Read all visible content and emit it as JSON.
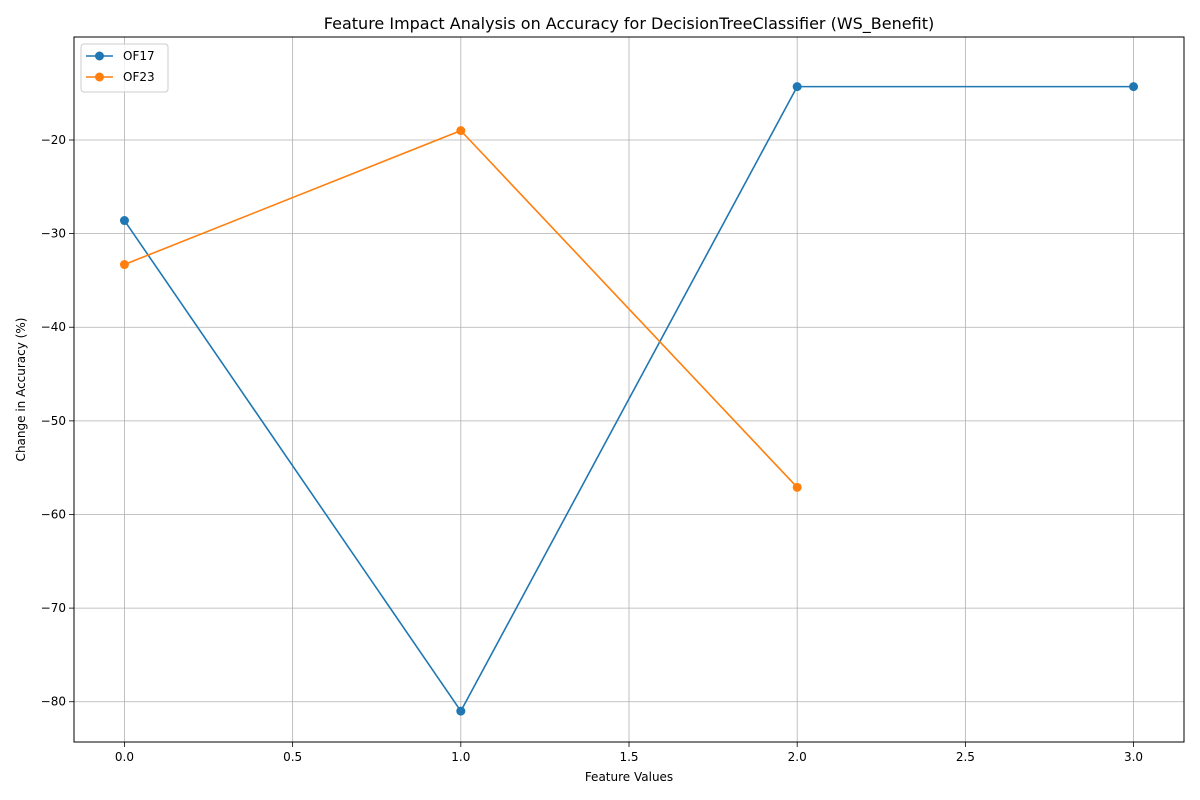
{
  "chart_data": {
    "type": "line",
    "title": "Feature Impact Analysis on Accuracy for DecisionTreeClassifier (WS_Benefit)",
    "xlabel": "Feature Values",
    "ylabel": "Change in Accuracy (%)",
    "xlim": [
      -0.15,
      3.15
    ],
    "ylim": [
      -84.3,
      -9.0
    ],
    "xticks": [
      0.0,
      0.5,
      1.0,
      1.5,
      2.0,
      2.5,
      3.0
    ],
    "xtick_labels": [
      "0.0",
      "0.5",
      "1.0",
      "1.5",
      "2.0",
      "2.5",
      "3.0"
    ],
    "yticks": [
      -80,
      -70,
      -60,
      -50,
      -40,
      -30,
      -20
    ],
    "ytick_labels": [
      "−80",
      "−70",
      "−60",
      "−50",
      "−40",
      "−30",
      "−20"
    ],
    "grid": true,
    "legend_position": "top-left",
    "series": [
      {
        "name": "OF17",
        "color": "#1f77b4",
        "marker": "circle",
        "x": [
          0,
          1,
          2,
          3
        ],
        "y": [
          -28.6,
          -81.0,
          -14.3,
          -14.3
        ]
      },
      {
        "name": "OF23",
        "color": "#ff7f0e",
        "marker": "circle",
        "x": [
          0,
          1,
          2
        ],
        "y": [
          -33.3,
          -19.0,
          -57.1
        ]
      }
    ]
  }
}
